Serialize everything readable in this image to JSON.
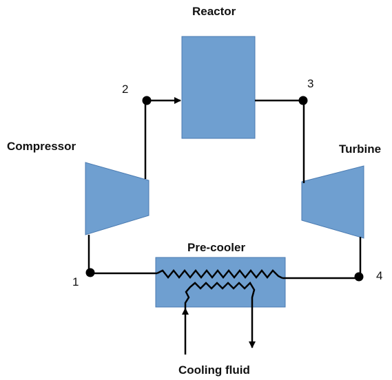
{
  "components": {
    "reactor": "Reactor",
    "compressor": "Compressor",
    "turbine": "Turbine",
    "precooler": "Pre-cooler",
    "cooling_fluid": "Cooling fluid"
  },
  "nodes": {
    "n1": "1",
    "n2": "2",
    "n3": "3",
    "n4": "4"
  },
  "colors": {
    "component_fill": "#6f9fd0",
    "component_stroke": "#4a7ab0",
    "line": "#000000"
  }
}
